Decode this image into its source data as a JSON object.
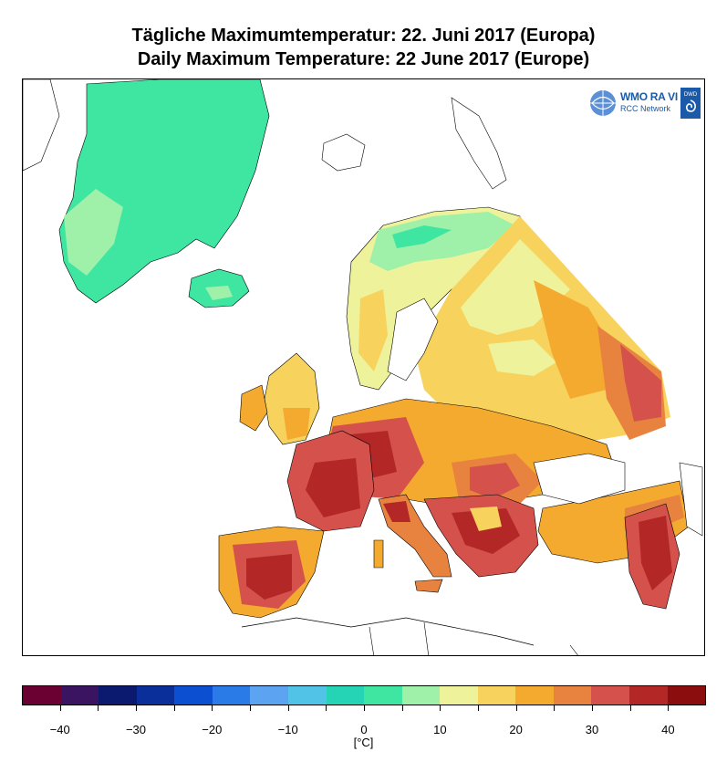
{
  "title_de": "Tägliche Maximumtemperatur:  22. Juni 2017  (Europa)",
  "title_en": "Daily Maximum Temperature:  22 June 2017  (Europe)",
  "logo": {
    "wmo": "WMO RA VI",
    "network": "RCC Network",
    "dwd": "DWD"
  },
  "legend": {
    "unit": "[°C]",
    "bins": [
      -45,
      -40,
      -35,
      -30,
      -25,
      -20,
      -15,
      -10,
      -5,
      0,
      5,
      10,
      15,
      20,
      25,
      30,
      35,
      40,
      45
    ],
    "colors": [
      "#6b0032",
      "#3a1460",
      "#0b1a6e",
      "#0a2f9a",
      "#0d4fd1",
      "#2a7ae8",
      "#5ca3f2",
      "#50c3e6",
      "#25d4b4",
      "#3ee6a2",
      "#9ff0a8",
      "#eef29a",
      "#f7d25c",
      "#f4aa2f",
      "#e8833f",
      "#d4524b",
      "#b32727",
      "#8c0d0d"
    ],
    "tick_labels": [
      "-40",
      "-30",
      "-20",
      "-10",
      "0",
      "10",
      "20",
      "30",
      "40"
    ]
  }
}
